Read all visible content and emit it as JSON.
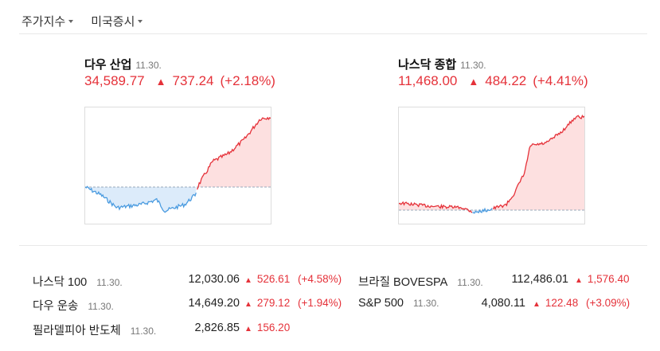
{
  "tabs": [
    {
      "label": "주가지수"
    },
    {
      "label": "미국증시"
    }
  ],
  "cards": [
    {
      "name": "다우 산업",
      "date": "11.30.",
      "price": "34,589.77",
      "arrow": "▲",
      "change": "737.24",
      "pct": "(+2.18%)"
    },
    {
      "name": "나스닥 종합",
      "date": "11.30.",
      "price": "11,468.00",
      "arrow": "▲",
      "change": "484.22",
      "pct": "(+4.41%)"
    }
  ],
  "colors": {
    "up": "#e5323a",
    "down": "#4a9be0",
    "up_fill": "#fde0e0",
    "down_fill": "#dcebfa"
  },
  "list": [
    {
      "name": "나스닥 100",
      "date": "11.30.",
      "price": "12,030.06",
      "arrow": "▲",
      "change": "526.61",
      "pct": "(+4.58%)"
    },
    {
      "name": "다우 운송",
      "date": "11.30.",
      "price": "14,649.20",
      "arrow": "▲",
      "change": "279.12",
      "pct": "(+1.94%)"
    },
    {
      "name": "필라델피아 반도체",
      "date": "11.30.",
      "price": "2,826.85",
      "arrow": "▲",
      "change": "156.20",
      "pct": ""
    },
    {
      "name": "브라질 BOVESPA",
      "date": "11.30.",
      "price": "112,486.01",
      "arrow": "▲",
      "change": "1,576.40",
      "pct": ""
    },
    {
      "name": "S&P 500",
      "date": "11.30.",
      "price": "4,080.11",
      "arrow": "▲",
      "change": "122.48",
      "pct": "(+3.09%)"
    }
  ]
}
